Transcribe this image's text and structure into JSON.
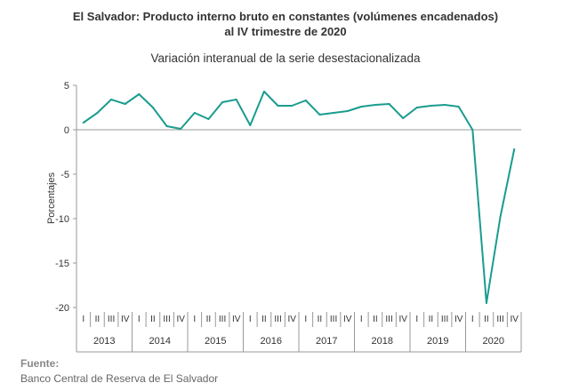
{
  "header": {
    "title_line1": "El Salvador: Producto interno bruto en constantes (volúmenes encadenados)",
    "title_line2": "al IV trimestre de 2020",
    "subtitle": "Variación interanual de la serie desestacionalizada"
  },
  "source": {
    "label": "Fuente:",
    "text": "Banco Central de Reserva de El Salvador"
  },
  "colors": {
    "line": "#1a9c8f",
    "axis": "#999999",
    "text": "#333333"
  },
  "chart_data": {
    "type": "line",
    "title": "El Salvador: Producto interno bruto en constantes (volúmenes encadenados) al IV trimestre de 2020",
    "subtitle": "Variación interanual de la serie desestacionalizada",
    "ylabel": "Porcentajes",
    "xlabel": "",
    "ylim": [
      -20,
      5
    ],
    "yticks": [
      5,
      0,
      -5,
      -10,
      -15,
      -20
    ],
    "grid": false,
    "quarters": [
      "I",
      "II",
      "III",
      "IV"
    ],
    "years": [
      "2013",
      "2014",
      "2015",
      "2016",
      "2017",
      "2018",
      "2019",
      "2020"
    ],
    "series": [
      {
        "values": [
          0.8,
          1.9,
          3.4,
          2.9,
          4.0,
          2.5,
          0.4,
          0.1,
          1.9,
          1.2,
          3.1,
          3.4,
          0.5,
          4.3,
          2.7,
          2.7,
          3.3,
          1.7,
          1.9,
          2.1,
          2.6,
          2.8,
          2.9,
          1.3,
          2.5,
          2.7,
          2.8,
          2.6,
          0.0,
          -19.5,
          -9.8,
          -2.2
        ]
      }
    ]
  }
}
